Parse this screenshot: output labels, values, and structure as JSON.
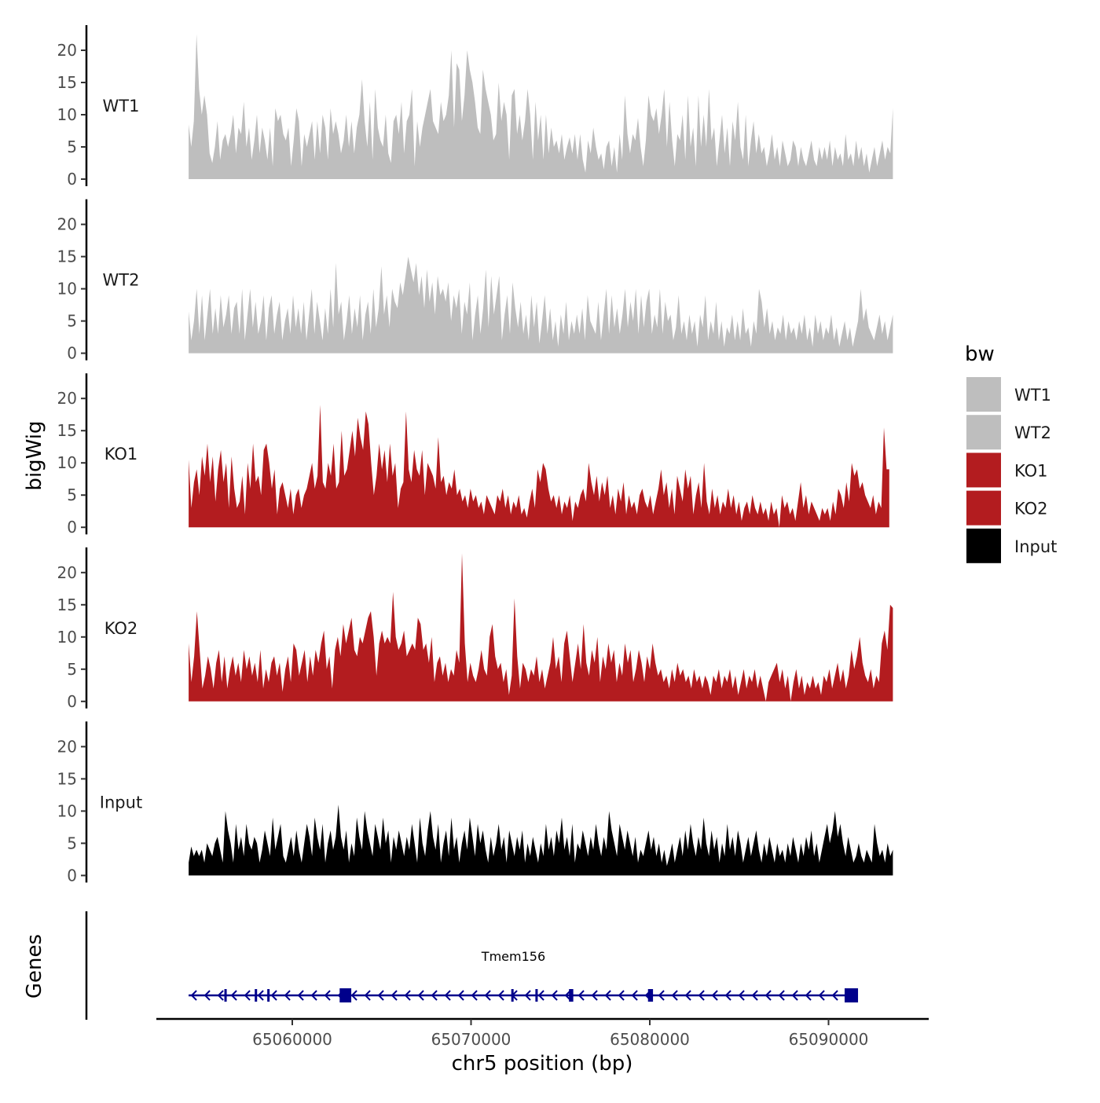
{
  "chart_data": {
    "type": "area",
    "region": {
      "chromosome": "chr5",
      "start": 65054200,
      "end": 65093600
    },
    "y_axis_title": "bigWig",
    "x_axis_title": "chr5 position (bp)",
    "genes_axis_title": "Genes",
    "ylim": [
      0,
      24
    ],
    "y_ticks": [
      "0",
      "5",
      "10",
      "15",
      "20"
    ],
    "x_ticks": [
      {
        "value": 65060000,
        "label": "65060000"
      },
      {
        "value": 65070000,
        "label": "65070000"
      },
      {
        "value": 65080000,
        "label": "65080000"
      },
      {
        "value": 65090000,
        "label": "65090000"
      }
    ],
    "legend": {
      "title": "bw",
      "position": "right"
    },
    "series": [
      {
        "name": "WT1",
        "color": "#bebebe",
        "x_start": 65054200,
        "x_end": 65093600,
        "values": [
          8.5,
          5,
          9,
          22.5,
          14,
          10,
          13,
          10,
          4,
          2.5,
          5,
          9,
          3,
          6,
          7,
          5,
          7,
          10,
          4,
          8,
          7,
          12,
          5,
          8,
          3,
          6,
          10,
          4,
          8,
          6,
          3,
          8,
          2,
          11,
          9,
          10,
          7,
          6,
          8,
          2,
          6,
          11,
          9,
          2,
          7,
          5,
          7,
          9,
          3,
          9,
          4,
          10,
          8,
          3,
          11,
          7,
          9,
          7,
          4,
          6,
          10,
          5,
          9,
          4,
          8,
          10,
          15.5,
          9,
          5,
          12,
          3,
          14,
          8,
          6,
          5,
          10,
          4,
          2.5,
          9,
          10,
          7,
          12,
          4,
          9,
          10,
          14,
          2,
          9,
          5,
          8,
          10,
          12,
          14,
          9,
          8,
          7,
          12,
          9,
          10,
          13,
          20,
          8,
          18,
          17,
          9,
          13,
          20,
          17,
          15,
          12,
          8,
          7,
          17,
          14,
          12,
          10,
          6,
          7,
          15,
          9,
          12,
          10,
          3,
          13,
          14,
          7,
          10,
          6,
          9,
          14,
          10,
          3,
          12,
          6,
          10,
          3,
          10,
          4,
          8,
          5,
          6,
          4,
          7,
          3,
          5,
          6.5,
          4,
          7,
          3,
          7,
          3,
          1,
          6,
          4,
          8,
          5,
          3,
          4,
          1.5,
          5,
          6,
          2,
          5,
          1,
          7,
          3,
          13,
          7,
          4,
          7,
          6,
          9.5,
          5,
          2,
          6,
          13,
          10,
          9,
          11,
          7,
          10,
          14,
          5,
          12,
          6,
          2,
          7,
          6,
          10,
          3,
          13,
          5,
          8,
          2,
          13,
          5,
          10,
          5,
          14,
          6,
          8,
          2,
          6,
          10,
          4,
          8,
          2,
          9,
          6,
          12,
          5,
          3,
          10,
          2,
          6,
          9,
          4,
          7,
          4,
          5,
          2,
          4,
          7,
          3,
          5,
          2,
          6,
          4,
          2,
          3,
          6,
          5,
          2,
          5,
          3,
          2,
          4,
          6,
          3,
          2,
          5,
          3,
          5,
          3,
          6,
          2,
          5,
          3,
          4,
          2,
          7,
          3,
          4,
          2,
          6,
          3,
          5,
          2,
          4,
          1,
          3,
          5,
          2,
          4,
          6,
          3,
          5,
          4,
          11
        ]
      },
      {
        "name": "WT2",
        "color": "#bebebe",
        "x_start": 65054200,
        "x_end": 65093600,
        "values": [
          6.5,
          2,
          5,
          10,
          3,
          9,
          2,
          6,
          10,
          3,
          7,
          3,
          9,
          4,
          6,
          9,
          3,
          7,
          8,
          3,
          10,
          2,
          6,
          10,
          4,
          8,
          3,
          5,
          9,
          2,
          7,
          9,
          3,
          6,
          8,
          2,
          5,
          7,
          3,
          9,
          4,
          7,
          3,
          8,
          2,
          6,
          10,
          3,
          8,
          5,
          2,
          7,
          3,
          10,
          4,
          14,
          6,
          8,
          2,
          5,
          9,
          3,
          7,
          4,
          9,
          2,
          6,
          8,
          3,
          10,
          4,
          7,
          13.5,
          6,
          9,
          4,
          10,
          8,
          7,
          11,
          9,
          12,
          15,
          13,
          11,
          14,
          9,
          12,
          7,
          13,
          8,
          11,
          6,
          12,
          9,
          10,
          8,
          11,
          5,
          9,
          7,
          10,
          3,
          8,
          6,
          11,
          2,
          6,
          9,
          3,
          7,
          13,
          4,
          12,
          6,
          9,
          12,
          2,
          6,
          9,
          3,
          11,
          7,
          4,
          8,
          3,
          6,
          2,
          9,
          4,
          8,
          1.5,
          5,
          9,
          3,
          7,
          2,
          5,
          1,
          6,
          3,
          8,
          2,
          5,
          3,
          6,
          3,
          7,
          2,
          9,
          5,
          4,
          3,
          8,
          2,
          6,
          10,
          3,
          9,
          4,
          7,
          3,
          6,
          10,
          4,
          8,
          5,
          10,
          3,
          9,
          4,
          8,
          10,
          3,
          6,
          4,
          10,
          3,
          8,
          5,
          6,
          2,
          4,
          9,
          3,
          5,
          2,
          6,
          3,
          5,
          1,
          6,
          4,
          9,
          2,
          5,
          3,
          8,
          2,
          5,
          1,
          4,
          3,
          6,
          2,
          5,
          2,
          7,
          3,
          4,
          1,
          5,
          3,
          10,
          8,
          4,
          7,
          3,
          5,
          2,
          4,
          3,
          6,
          2,
          5,
          3,
          4,
          2,
          5,
          3,
          6,
          2,
          4,
          1,
          6,
          3,
          5,
          2,
          4,
          3,
          6,
          2,
          4,
          1,
          3,
          5,
          2,
          4,
          1,
          3,
          5,
          10,
          5,
          7,
          4,
          3,
          2,
          4,
          6,
          3,
          5,
          2,
          4,
          6
        ]
      },
      {
        "name": "KO1",
        "color": "#b31c1f",
        "x_start": 65054200,
        "x_end": 65093400,
        "values": [
          10.5,
          3,
          7,
          9,
          5,
          11,
          8,
          13,
          7,
          11,
          4,
          9,
          12,
          7,
          10,
          3,
          11,
          6,
          3,
          4,
          8,
          2,
          10,
          6,
          13,
          7,
          8,
          5,
          12,
          13,
          10,
          6,
          9,
          2,
          6,
          7,
          5,
          3,
          6,
          2,
          5,
          6,
          3,
          5,
          6,
          8,
          10,
          6,
          8,
          19,
          7,
          6,
          10,
          8,
          13,
          6,
          7,
          15,
          8,
          9,
          12,
          15,
          11,
          17,
          14,
          12,
          18,
          16,
          10,
          5,
          8,
          13,
          9,
          12,
          7,
          13,
          8,
          10,
          3,
          6,
          7,
          18,
          9,
          7,
          12,
          9,
          8,
          12,
          5,
          10,
          9,
          8,
          6,
          14,
          7,
          8,
          5,
          7,
          6,
          9,
          5,
          6,
          4,
          5,
          3,
          6,
          4,
          5,
          3,
          4,
          2,
          5,
          4,
          3,
          2,
          5,
          4,
          6,
          3,
          5,
          2,
          4,
          3,
          5,
          2,
          3,
          1.5,
          4,
          6,
          3,
          9,
          7,
          10,
          9,
          6,
          4,
          5,
          3,
          5,
          2,
          4,
          3,
          5,
          1,
          4,
          3,
          5,
          6,
          4,
          10,
          7,
          5,
          8,
          4,
          7,
          5,
          8,
          3,
          5,
          2,
          6,
          4,
          7,
          2,
          5,
          3,
          4,
          2,
          5,
          6,
          4,
          3,
          5,
          2,
          4,
          6,
          9,
          5,
          7,
          3,
          6,
          2,
          8,
          6,
          4,
          9,
          6,
          8,
          2,
          5,
          7,
          3,
          10,
          4,
          2,
          6,
          3,
          5,
          2,
          4,
          3,
          6,
          3,
          5,
          2,
          4,
          1,
          3,
          4,
          2,
          5,
          3,
          2,
          4,
          2,
          3,
          1,
          4,
          2,
          3,
          0,
          5,
          3,
          4,
          2,
          3,
          1,
          4,
          7,
          3,
          5,
          2,
          4,
          3,
          2,
          1,
          3,
          2,
          3,
          1,
          4,
          2,
          6,
          5,
          3,
          7,
          4,
          10,
          8,
          9,
          6,
          7,
          5,
          4,
          3,
          5,
          2,
          4,
          3,
          15.5,
          9,
          9
        ]
      },
      {
        "name": "KO2",
        "color": "#b31c1f",
        "x_start": 65054200,
        "x_end": 65093600,
        "values": [
          9,
          3,
          7,
          14,
          8,
          2,
          4,
          7,
          5,
          2,
          6,
          8,
          3,
          7,
          2,
          5,
          7,
          4,
          6,
          3,
          8,
          5,
          7,
          4,
          6,
          3,
          8,
          2,
          5,
          3,
          6,
          7,
          4,
          6,
          1.5,
          5,
          7,
          3,
          9,
          8,
          4,
          6,
          8,
          3,
          7,
          4,
          8,
          6,
          9,
          11,
          5,
          7,
          2,
          8,
          10,
          7,
          12,
          9,
          11,
          13,
          8,
          7,
          10,
          9,
          11,
          13,
          14,
          10,
          4,
          9,
          11,
          9,
          10,
          9,
          17,
          10,
          8,
          9,
          11,
          7,
          8,
          9,
          8,
          13,
          12,
          8,
          9,
          6,
          10,
          3,
          6,
          7,
          4,
          6,
          3,
          5,
          4,
          8,
          6,
          23,
          9,
          3,
          6,
          4,
          3,
          5,
          8,
          5,
          4,
          10,
          12,
          7,
          5,
          6,
          3,
          5,
          1,
          4,
          16,
          7,
          2,
          6,
          5,
          3,
          5,
          4,
          7,
          3,
          5,
          2,
          4,
          6,
          10,
          5,
          7,
          3,
          9,
          11,
          7,
          3,
          6,
          9,
          5,
          12,
          6,
          4,
          8,
          6,
          10,
          3,
          7,
          5,
          9,
          6,
          8,
          3,
          6,
          4,
          9,
          6,
          8,
          3,
          5,
          8,
          6,
          3,
          7,
          5,
          9,
          6,
          4,
          5,
          3,
          4,
          2,
          5,
          3,
          6,
          4,
          5,
          3,
          4,
          2,
          5,
          3,
          4,
          2,
          4,
          3,
          1,
          4,
          3,
          5,
          2,
          4,
          3,
          5,
          2,
          4,
          1,
          3,
          5,
          2,
          4,
          3,
          5,
          2,
          4,
          2,
          0,
          3,
          4,
          5,
          6,
          3,
          5,
          2,
          4,
          0,
          3,
          5,
          2,
          4,
          1,
          3,
          2,
          4,
          2,
          3,
          1,
          4,
          3,
          5,
          2,
          4,
          6,
          3,
          5,
          2,
          4,
          8,
          5,
          7,
          10,
          6,
          4,
          3,
          5,
          2,
          4,
          3,
          9,
          11,
          8,
          15,
          14.5
        ]
      },
      {
        "name": "Input",
        "color": "#000000",
        "x_start": 65054200,
        "x_end": 65093600,
        "values": [
          2,
          4.5,
          3,
          4,
          3,
          4,
          2,
          5,
          4,
          3,
          5,
          6,
          4,
          2,
          10,
          7,
          5,
          2,
          8,
          4,
          6,
          3,
          8,
          5,
          4,
          6,
          5,
          2,
          4,
          7,
          5,
          3,
          9,
          4,
          6,
          8,
          3,
          2,
          4,
          6,
          3,
          7,
          4,
          2,
          5,
          8,
          6,
          3,
          9,
          6,
          4,
          8,
          2,
          5,
          7,
          4,
          6,
          11,
          6,
          4,
          7,
          2,
          5,
          3,
          9,
          6,
          4,
          10,
          7,
          5,
          3,
          8,
          6,
          4,
          9,
          5,
          7,
          2,
          6,
          4,
          7,
          5,
          3,
          6,
          4,
          8,
          5,
          2,
          9,
          5,
          3,
          7,
          10,
          6,
          4,
          8,
          2,
          5,
          7,
          3,
          9,
          4,
          6,
          2,
          5,
          7,
          4,
          9,
          6,
          3,
          8,
          5,
          7,
          4,
          2,
          6,
          3,
          5,
          8,
          4,
          6,
          2,
          7,
          5,
          3,
          6,
          4,
          7,
          2,
          5,
          3,
          6,
          4,
          2,
          5,
          3,
          8,
          4,
          6,
          3,
          7,
          5,
          9,
          4,
          6,
          3,
          8,
          2,
          5,
          4,
          7,
          5,
          3,
          6,
          4,
          8,
          5,
          3,
          6,
          4,
          10,
          7,
          5,
          3,
          8,
          6,
          4,
          7,
          5,
          3,
          6,
          2,
          4,
          3,
          5,
          7,
          4,
          6,
          3,
          5,
          2,
          4,
          1.5,
          3,
          5,
          2,
          4,
          6,
          3,
          7,
          4,
          8,
          5,
          3,
          6,
          4,
          9,
          5,
          3,
          7,
          4,
          6,
          2,
          5,
          3,
          8,
          4,
          6,
          3,
          7,
          5,
          2,
          4,
          6,
          3,
          5,
          7,
          4,
          2,
          5,
          3,
          6,
          4,
          2,
          5,
          3,
          4,
          2,
          5,
          3,
          6,
          4,
          2,
          5,
          3,
          6,
          4,
          7,
          3,
          5,
          2,
          4,
          6,
          8,
          5,
          7,
          10,
          6,
          8,
          5,
          3,
          6,
          4,
          2,
          3,
          5,
          3,
          2,
          4,
          3,
          2,
          8,
          5,
          3,
          4,
          2,
          5,
          3,
          4
        ]
      }
    ],
    "genes": [
      {
        "name": "Tmem156",
        "strand": "-",
        "color": "#00008b",
        "start": 65054200,
        "end": 65091600,
        "exons": [
          [
            65056200,
            65056280
          ],
          [
            65057900,
            65057980
          ],
          [
            65058600,
            65058680
          ],
          [
            65062650,
            65063300
          ],
          [
            65072250,
            65072330
          ],
          [
            65073600,
            65073680
          ],
          [
            65075480,
            65075720
          ],
          [
            65079900,
            65080180
          ],
          [
            65090900,
            65091650
          ]
        ]
      }
    ]
  }
}
